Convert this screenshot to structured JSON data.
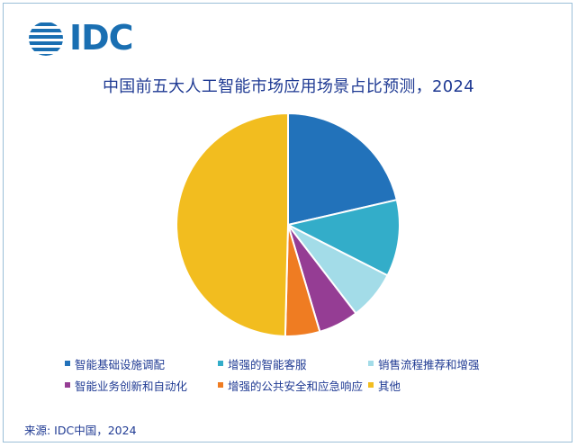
{
  "logo": {
    "text": "IDC",
    "color": "#1a6fb2"
  },
  "title": "中国前五大人工智能市场应用场景占比预测，2024",
  "source": "来源: IDC中国，2024",
  "chart_data": {
    "type": "pie",
    "title": "中国前五大人工智能市场应用场景占比预测，2024",
    "start_angle_deg": 0,
    "direction": "clockwise",
    "legend_position": "bottom",
    "slices": [
      {
        "label": "智能基础设施调配",
        "value": 21.4,
        "color": "#2272ba"
      },
      {
        "label": "增强的智能客服",
        "value": 11.1,
        "color": "#33adc9"
      },
      {
        "label": "销售流程推荐和增强",
        "value": 7.1,
        "color": "#a3dce8"
      },
      {
        "label": "智能业务创新和自动化",
        "value": 5.8,
        "color": "#953d94"
      },
      {
        "label": "增强的公共安全和应急响应",
        "value": 5.0,
        "color": "#ef7c22"
      },
      {
        "label": "其他",
        "value": 49.6,
        "color": "#f2bd1f"
      }
    ]
  }
}
